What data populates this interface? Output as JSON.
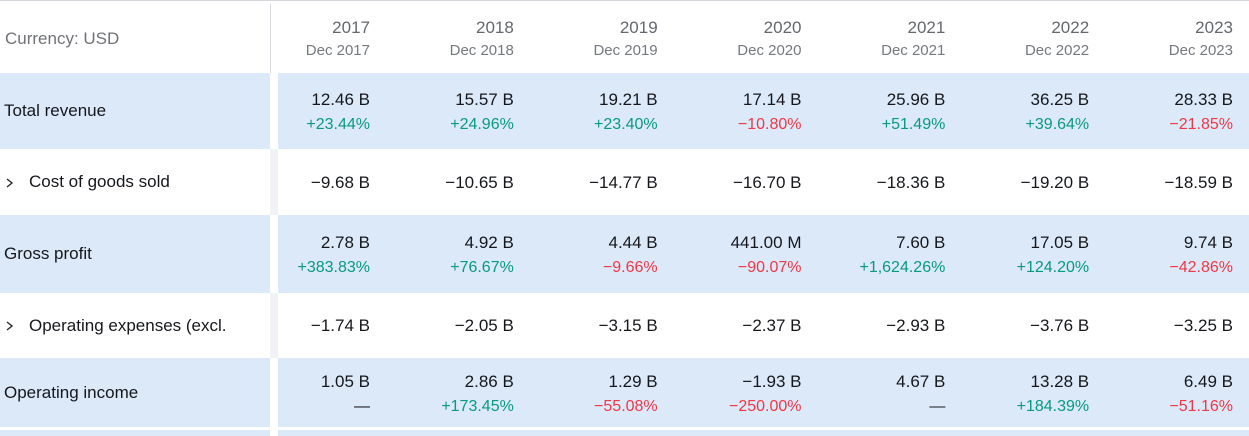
{
  "header": {
    "currency_label": "Currency: USD",
    "columns": [
      {
        "year": "2017",
        "period": "Dec 2017"
      },
      {
        "year": "2018",
        "period": "Dec 2018"
      },
      {
        "year": "2019",
        "period": "Dec 2019"
      },
      {
        "year": "2020",
        "period": "Dec 2020"
      },
      {
        "year": "2021",
        "period": "Dec 2021"
      },
      {
        "year": "2022",
        "period": "Dec 2022"
      },
      {
        "year": "2023",
        "period": "Dec 2023"
      }
    ]
  },
  "colors": {
    "positive": "#089981",
    "negative": "#f23645",
    "row_highlight": "#dbe9f9"
  },
  "icons": {
    "expand": "chevron-right-icon"
  },
  "rows": [
    {
      "label": "Total revenue",
      "expandable": false,
      "highlighted": true,
      "cells": [
        {
          "value": "12.46 B",
          "change": "+23.44%",
          "trend": "up"
        },
        {
          "value": "15.57 B",
          "change": "+24.96%",
          "trend": "up"
        },
        {
          "value": "19.21 B",
          "change": "+23.40%",
          "trend": "up"
        },
        {
          "value": "17.14 B",
          "change": "−10.80%",
          "trend": "down"
        },
        {
          "value": "25.96 B",
          "change": "+51.49%",
          "trend": "up"
        },
        {
          "value": "36.25 B",
          "change": "+39.64%",
          "trend": "up"
        },
        {
          "value": "28.33 B",
          "change": "−21.85%",
          "trend": "down"
        }
      ]
    },
    {
      "label": "Cost of goods sold",
      "expandable": true,
      "highlighted": false,
      "cells": [
        {
          "value": "−9.68 B"
        },
        {
          "value": "−10.65 B"
        },
        {
          "value": "−14.77 B"
        },
        {
          "value": "−16.70 B"
        },
        {
          "value": "−18.36 B"
        },
        {
          "value": "−19.20 B"
        },
        {
          "value": "−18.59 B"
        }
      ]
    },
    {
      "label": "Gross profit",
      "expandable": false,
      "highlighted": true,
      "cells": [
        {
          "value": "2.78 B",
          "change": "+383.83%",
          "trend": "up"
        },
        {
          "value": "4.92 B",
          "change": "+76.67%",
          "trend": "up"
        },
        {
          "value": "4.44 B",
          "change": "−9.66%",
          "trend": "down"
        },
        {
          "value": "441.00 M",
          "change": "−90.07%",
          "trend": "down"
        },
        {
          "value": "7.60 B",
          "change": "+1,624.26%",
          "trend": "up"
        },
        {
          "value": "17.05 B",
          "change": "+124.20%",
          "trend": "up"
        },
        {
          "value": "9.74 B",
          "change": "−42.86%",
          "trend": "down"
        }
      ]
    },
    {
      "label": "Operating expenses (excl.",
      "expandable": true,
      "highlighted": false,
      "cells": [
        {
          "value": "−1.74 B"
        },
        {
          "value": "−2.05 B"
        },
        {
          "value": "−3.15 B"
        },
        {
          "value": "−2.37 B"
        },
        {
          "value": "−2.93 B"
        },
        {
          "value": "−3.76 B"
        },
        {
          "value": "−3.25 B"
        }
      ]
    },
    {
      "label": "Operating income",
      "expandable": false,
      "highlighted": true,
      "cells": [
        {
          "value": "1.05 B",
          "change": "—",
          "trend": "flat"
        },
        {
          "value": "2.86 B",
          "change": "+173.45%",
          "trend": "up"
        },
        {
          "value": "1.29 B",
          "change": "−55.08%",
          "trend": "down"
        },
        {
          "value": "−1.93 B",
          "change": "−250.00%",
          "trend": "down"
        },
        {
          "value": "4.67 B",
          "change": "—",
          "trend": "flat"
        },
        {
          "value": "13.28 B",
          "change": "+184.39%",
          "trend": "up"
        },
        {
          "value": "6.49 B",
          "change": "−51.16%",
          "trend": "down"
        }
      ]
    }
  ]
}
